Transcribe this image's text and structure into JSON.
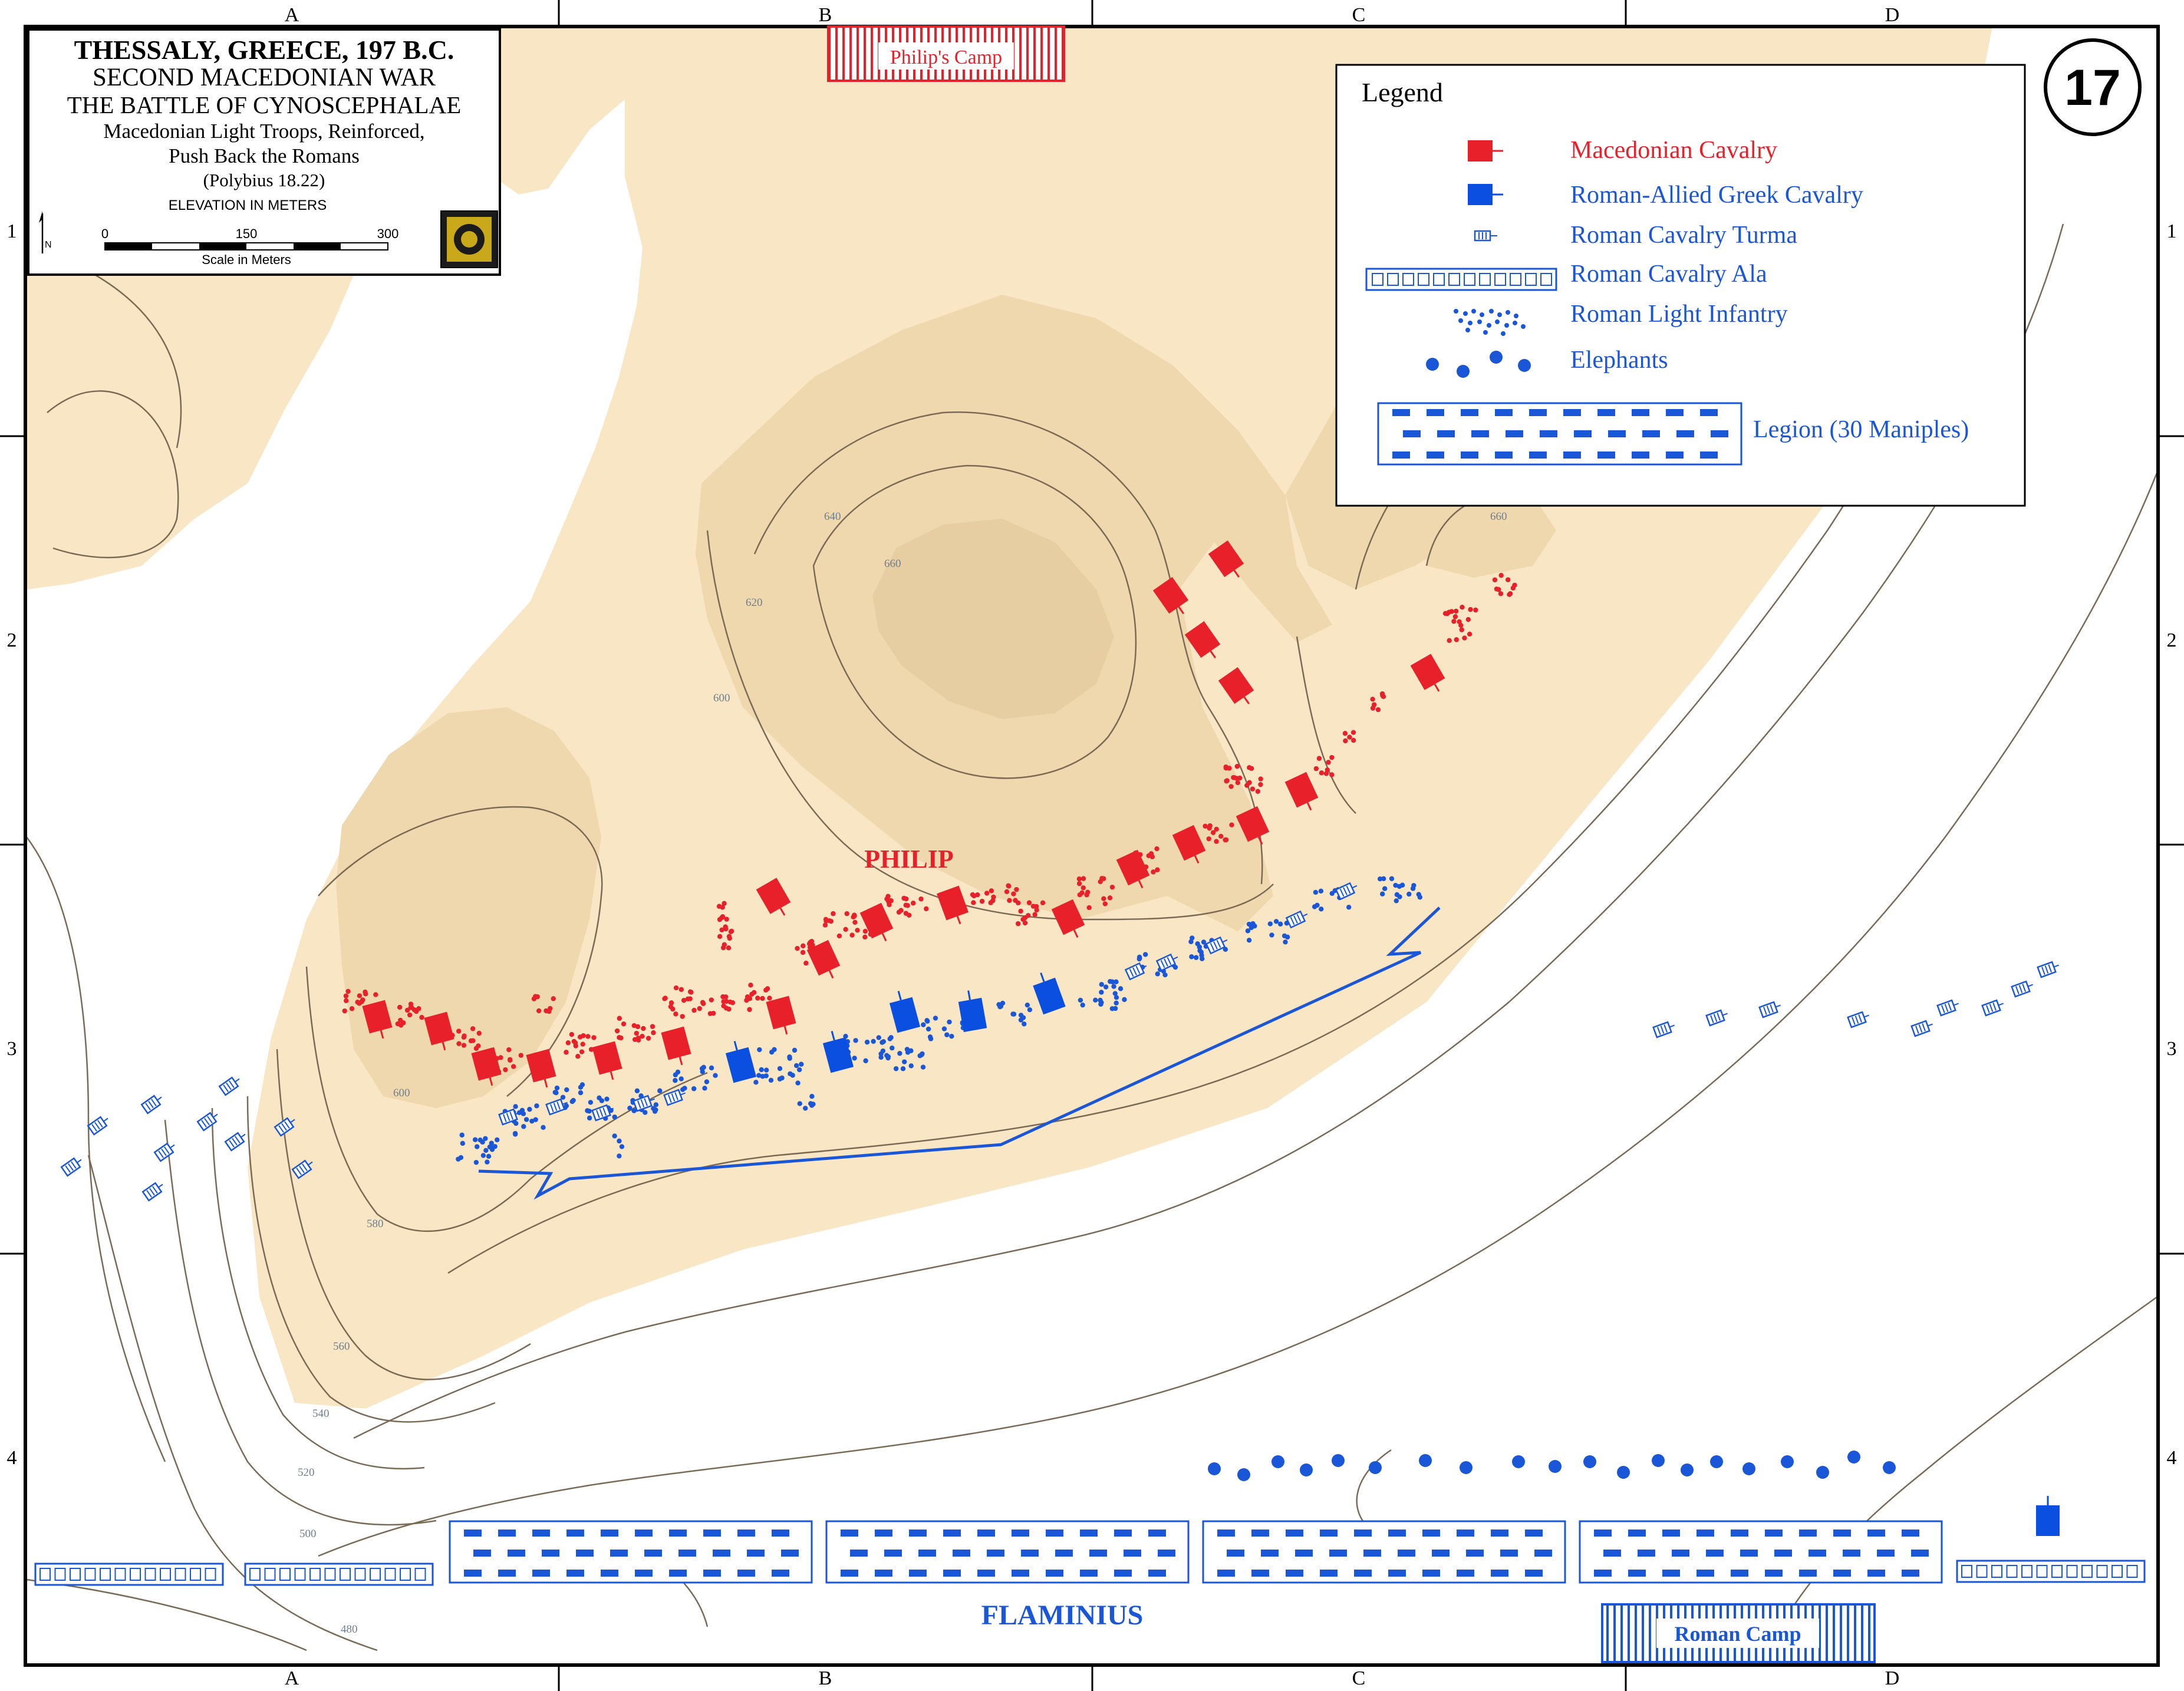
{
  "grid": {
    "columns": [
      "A",
      "B",
      "C",
      "D"
    ],
    "rows": [
      "1",
      "2",
      "3",
      "4"
    ]
  },
  "title_box": {
    "line1": "THESSALY, GREECE, 197 B.C.",
    "line2": "SECOND MACEDONIAN WAR",
    "line3": "THE BATTLE OF CYNOSCEPHALAE",
    "line4": "Macedonian Light Troops, Reinforced,",
    "line5": "Push Back the Romans",
    "line6": "(Polybius 18.22)",
    "elevation_note": "ELEVATION IN METERS",
    "north_label": "N",
    "scale_ticks": [
      "0",
      "150",
      "300"
    ],
    "scale_label": "Scale in Meters"
  },
  "map_number": "17",
  "legend": {
    "title": "Legend",
    "items": [
      {
        "label": "Macedonian Cavalry",
        "color": "#e8202a"
      },
      {
        "label": "Roman-Allied Greek Cavalry",
        "color": "#0a4fe0"
      },
      {
        "label": "Roman Cavalry Turma",
        "color": "#1a56d8"
      },
      {
        "label": "Roman Cavalry Ala",
        "color": "#1a56d8"
      },
      {
        "label": "Roman Light Infantry",
        "color": "#1a56d8"
      },
      {
        "label": "Elephants",
        "color": "#1a56d8"
      },
      {
        "label": "Legion (30 Maniples)",
        "color": "#1a56d8"
      }
    ]
  },
  "labels": {
    "philip": "PHILIP",
    "flaminius": "FLAMINIUS",
    "philips_camp": "Philip's Camp",
    "roman_camp": "Roman Camp"
  },
  "contours": [
    "480",
    "500",
    "520",
    "540",
    "560",
    "580",
    "600",
    "620",
    "640",
    "660",
    "600",
    "660"
  ],
  "colors": {
    "terrain_low": "#f8e6c4",
    "terrain_mid": "#f0d8ae",
    "terrain_high": "#e6cda2",
    "macedonian": "#e8202a",
    "roman": "#1a56d8",
    "contour_line": "#7a6a55"
  }
}
